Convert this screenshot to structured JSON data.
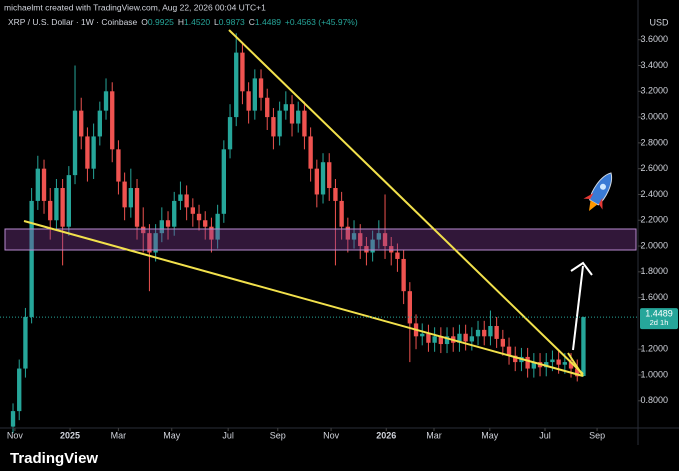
{
  "header": {
    "credit": "michaelmt created with TradingView.com, Aug 22, 2026 00:04 UTC+1",
    "symbol": "XRP / U.S. Dollar · 1W · Coinbase",
    "ohlc": [
      {
        "key": "O",
        "value": "0.9925"
      },
      {
        "key": "H",
        "value": "1.4520"
      },
      {
        "key": "L",
        "value": "0.9873"
      },
      {
        "key": "C",
        "value": "1.4489"
      }
    ],
    "change": "+0.4563 (+45.97%)"
  },
  "footer": {
    "brand": "TradingView"
  },
  "chart_data": {
    "type": "candlestick",
    "currency": "USD",
    "countdown": "2d 1h",
    "up_color": "#26a69a",
    "down_color": "#ef5350",
    "grid": false,
    "xlim": [
      -2.1,
      100.8
    ],
    "ylim": [
      0.589,
      3.908
    ],
    "xticks": [
      {
        "value": 0.3,
        "label": "Nov"
      },
      {
        "value": 9.2,
        "label": "2025"
      },
      {
        "value": 17,
        "label": "Mar"
      },
      {
        "value": 25.6,
        "label": "May"
      },
      {
        "value": 34.7,
        "label": "Jul"
      },
      {
        "value": 42.7,
        "label": "Sep"
      },
      {
        "value": 51.3,
        "label": "Nov"
      },
      {
        "value": 60.2,
        "label": "2026"
      },
      {
        "value": 67.9,
        "label": "Mar"
      },
      {
        "value": 76.9,
        "label": "May"
      },
      {
        "value": 85.8,
        "label": "Jul"
      },
      {
        "value": 94.2,
        "label": "Sep"
      }
    ],
    "yticks": [
      {
        "value": 0.8,
        "label": "0.8000"
      },
      {
        "value": 1.0,
        "label": "1.0000"
      },
      {
        "value": 1.2,
        "label": "1.2000"
      },
      {
        "value": 1.6,
        "label": "1.6000"
      },
      {
        "value": 1.8,
        "label": "1.8000"
      },
      {
        "value": 2.0,
        "label": "2.0000"
      },
      {
        "value": 2.2,
        "label": "2.2000"
      },
      {
        "value": 2.4,
        "label": "2.4000"
      },
      {
        "value": 2.6,
        "label": "2.6000"
      },
      {
        "value": 2.8,
        "label": "2.8000"
      },
      {
        "value": 3.0,
        "label": "3.0000"
      },
      {
        "value": 3.2,
        "label": "3.2000"
      },
      {
        "value": 3.4,
        "label": "3.4000"
      },
      {
        "value": 3.6,
        "label": "3.6000"
      }
    ],
    "open": [
      0.6,
      0.72,
      1.05,
      1.45,
      2.35,
      2.6,
      2.35,
      2.2,
      2.45,
      2.15,
      2.55,
      3.05,
      2.85,
      2.6,
      2.85,
      3.05,
      3.2,
      2.75,
      2.5,
      2.3,
      2.45,
      2.15,
      2.1,
      1.95,
      2.1,
      2.2,
      2.15,
      2.35,
      2.4,
      2.3,
      2.25,
      2.2,
      2.15,
      2.05,
      2.25,
      2.75,
      3.0,
      3.5,
      3.2,
      3.05,
      3.3,
      3.15,
      3.0,
      2.85,
      3.05,
      3.1,
      2.95,
      3.05,
      2.85,
      2.6,
      2.4,
      2.65,
      2.45,
      2.35,
      2.15,
      2.05,
      2.1,
      2.0,
      1.95,
      2.05,
      2.1,
      2.0,
      1.95,
      1.9,
      1.65,
      1.4,
      1.3,
      1.32,
      1.25,
      1.3,
      1.24,
      1.3,
      1.25,
      1.32,
      1.26,
      1.3,
      1.35,
      1.3,
      1.38,
      1.28,
      1.22,
      1.15,
      1.1,
      1.14,
      1.05,
      1.1,
      1.06,
      1.1,
      1.12,
      1.08,
      1.1,
      1.05,
      0.9925
    ],
    "high": [
      0.78,
      1.12,
      1.52,
      2.45,
      2.7,
      2.67,
      2.45,
      2.52,
      2.52,
      2.62,
      3.4,
      3.15,
      2.92,
      2.95,
      3.12,
      3.3,
      3.27,
      2.82,
      2.57,
      2.6,
      2.52,
      2.3,
      2.17,
      2.17,
      2.3,
      2.27,
      2.42,
      2.5,
      2.47,
      2.37,
      2.32,
      2.27,
      2.22,
      2.32,
      2.82,
      3.1,
      3.65,
      3.57,
      3.27,
      3.37,
      3.37,
      3.22,
      3.07,
      3.12,
      3.2,
      3.17,
      3.12,
      3.12,
      2.92,
      2.67,
      2.72,
      2.72,
      2.52,
      2.42,
      2.22,
      2.2,
      2.17,
      2.07,
      2.12,
      2.2,
      2.4,
      2.07,
      2.02,
      1.97,
      1.72,
      1.47,
      1.4,
      1.39,
      1.37,
      1.37,
      1.37,
      1.37,
      1.39,
      1.39,
      1.37,
      1.42,
      1.42,
      1.5,
      1.45,
      1.35,
      1.29,
      1.22,
      1.21,
      1.21,
      1.17,
      1.17,
      1.17,
      1.19,
      1.19,
      1.17,
      1.17,
      1.12,
      1.452
    ],
    "low": [
      0.55,
      0.65,
      0.98,
      1.4,
      2.28,
      2.25,
      2.05,
      2.12,
      1.85,
      2.08,
      2.48,
      2.75,
      2.5,
      2.52,
      2.78,
      2.98,
      2.65,
      2.4,
      2.2,
      2.22,
      2.05,
      1.95,
      1.65,
      1.88,
      2.03,
      2.05,
      2.08,
      2.28,
      2.2,
      2.15,
      2.12,
      2.05,
      1.95,
      1.98,
      2.18,
      2.68,
      2.93,
      3.1,
      2.95,
      2.98,
      3.05,
      2.9,
      2.75,
      2.78,
      2.98,
      2.85,
      2.88,
      2.75,
      2.5,
      2.3,
      2.33,
      2.35,
      1.85,
      2.05,
      1.95,
      1.98,
      1.9,
      1.85,
      1.88,
      1.98,
      1.9,
      1.85,
      1.8,
      1.55,
      1.1,
      1.2,
      1.23,
      1.18,
      1.18,
      1.17,
      1.17,
      1.18,
      1.18,
      1.19,
      1.19,
      1.23,
      1.23,
      1.23,
      1.21,
      1.15,
      1.08,
      1.03,
      1.03,
      0.98,
      0.98,
      0.99,
      0.99,
      1.03,
      1.01,
      1.01,
      0.98,
      0.95,
      0.9873
    ],
    "close": [
      0.72,
      1.05,
      1.45,
      2.35,
      2.6,
      2.35,
      2.2,
      2.45,
      2.15,
      2.55,
      3.05,
      2.85,
      2.6,
      2.85,
      3.05,
      3.2,
      2.75,
      2.5,
      2.3,
      2.45,
      2.15,
      2.1,
      1.95,
      2.1,
      2.2,
      2.15,
      2.35,
      2.4,
      2.3,
      2.25,
      2.2,
      2.15,
      2.05,
      2.25,
      2.75,
      3.0,
      3.5,
      3.2,
      3.05,
      3.3,
      3.15,
      3.0,
      2.85,
      3.05,
      3.1,
      2.95,
      3.05,
      2.85,
      2.6,
      2.4,
      2.65,
      2.45,
      2.35,
      2.15,
      2.05,
      2.1,
      2.0,
      1.95,
      2.05,
      2.1,
      2.0,
      1.95,
      1.9,
      1.65,
      1.4,
      1.3,
      1.32,
      1.25,
      1.3,
      1.24,
      1.3,
      1.25,
      1.32,
      1.26,
      1.3,
      1.35,
      1.3,
      1.38,
      1.28,
      1.22,
      1.15,
      1.1,
      1.14,
      1.05,
      1.1,
      1.06,
      1.1,
      1.12,
      1.08,
      1.1,
      1.05,
      0.99,
      1.4489
    ]
  }
}
